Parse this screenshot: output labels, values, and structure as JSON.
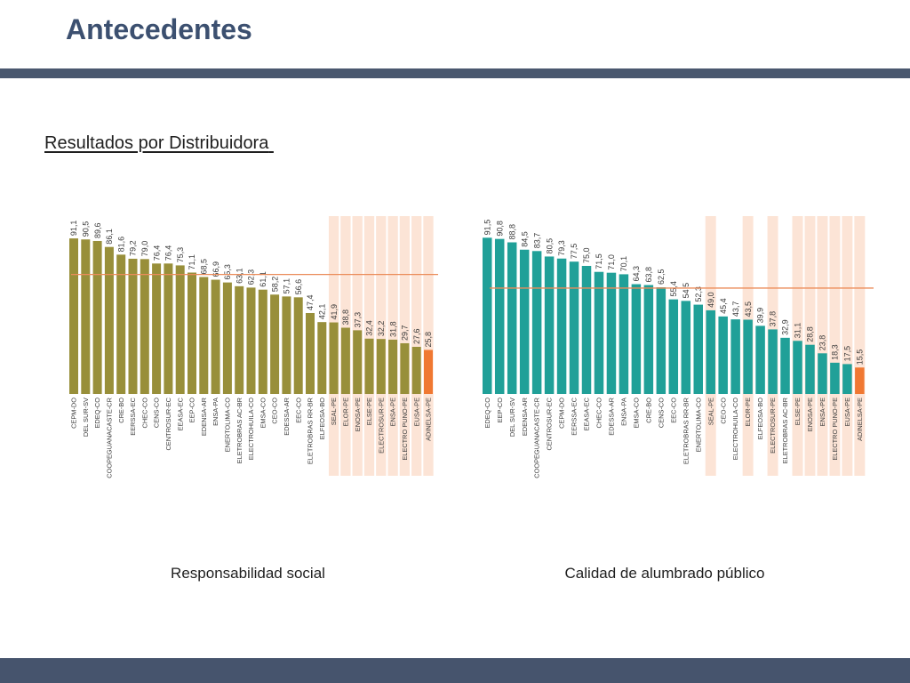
{
  "slide": {
    "title": "Antecedentes",
    "subtitle": "Resultados por Distribuidora",
    "colors": {
      "title": "#3c5070",
      "header_band": "#4a586f",
      "footer_band": "#46546d"
    }
  },
  "chart_data": [
    {
      "type": "bar",
      "title": "Responsabilidad social",
      "categories": [
        "CEPM-DO",
        "DEL SUR-SV",
        "EDEQ-CO",
        "COOPEGUANACASTE-CR",
        "CRE-BO",
        "EERSSA-EC",
        "CHEC-CO",
        "CENS-CO",
        "CENTROSUR-EC",
        "EEASA-EC",
        "EEP-CO",
        "EDENSA-AR",
        "ENSA-PA",
        "ENERTOLIMA-CO",
        "ELETROBRAS AC-BR",
        "ELECTROHUILA-CO",
        "EMSA-CO",
        "CEO-CO",
        "EDESSA-AR",
        "EEC-CO",
        "ELETROBRAS RR-BR",
        "ELFEOSA-BO",
        "SEAL-PE",
        "ELOR-PE",
        "ENOSA-PE",
        "ELSE-PE",
        "ELECTROSUR-PE",
        "ENSA-PE",
        "ELECTRO PUNO-PE",
        "EUSA-PE",
        "ADINELSA-PE"
      ],
      "values": [
        91.1,
        90.5,
        89.6,
        86.1,
        81.6,
        79.2,
        79.0,
        76.4,
        76.4,
        75.3,
        71.1,
        68.5,
        66.9,
        65.3,
        63.1,
        62.3,
        61.1,
        58.2,
        57.1,
        56.6,
        47.4,
        42.1,
        41.9,
        38.8,
        37.3,
        32.4,
        32.2,
        31.8,
        29.7,
        27.6,
        25.8
      ],
      "ylim": [
        0,
        100
      ],
      "reference_line": 70,
      "highlighted_categories": [
        "SEAL-PE",
        "ELOR-PE",
        "ENOSA-PE",
        "ELSE-PE",
        "ELECTROSUR-PE",
        "ENSA-PE",
        "ELECTRO PUNO-PE",
        "EUSA-PE",
        "ADINELSA-PE"
      ],
      "accent_category": "ADINELSA-PE",
      "colors": {
        "bar": "#988f3a",
        "accent": "#f07832",
        "highlight_band": "#fce4d6",
        "reference_line": "#eb8c5a"
      }
    },
    {
      "type": "bar",
      "title": "Calidad de alumbrado público",
      "categories": [
        "EDEQ-CO",
        "EEP-CO",
        "DEL SUR-SV",
        "EDENSA-AR",
        "COOPEGUANACASTE-CR",
        "CENTROSUR-EC",
        "CEPM-DO",
        "EERSSA-EC",
        "EEASA-EC",
        "CHEC-CO",
        "EDESSA-AR",
        "ENSA-PA",
        "EMSA-CO",
        "CRE-BO",
        "CENS-CO",
        "EEC-CO",
        "ELETROBRAS RR-BR",
        "ENERTOLIMA-CO",
        "SEAL-PE",
        "CEO-CO",
        "ELECTROHUILA-CO",
        "ELOR-PE",
        "ELFEOSA-BO",
        "ELECTROSUR-PE",
        "ELETROBRAS AC-BR",
        "ELSE-PE",
        "ENOSA-PE",
        "ENSA-PE",
        "ELECTRO PUNO-PE",
        "EUSA-PE",
        "ADINELSA-PE"
      ],
      "values": [
        91.5,
        90.8,
        88.8,
        84.5,
        83.7,
        80.5,
        79.3,
        77.5,
        75.0,
        71.5,
        71.0,
        70.1,
        64.3,
        63.8,
        62.5,
        55.4,
        54.5,
        52.3,
        49.0,
        45.4,
        43.7,
        43.5,
        39.9,
        37.8,
        32.9,
        31.1,
        28.8,
        23.8,
        18.3,
        17.5,
        15.5
      ],
      "ylim": [
        0,
        100
      ],
      "reference_line": 62,
      "highlighted_categories": [
        "SEAL-PE",
        "ELOR-PE",
        "ELECTROSUR-PE",
        "ELSE-PE",
        "ENOSA-PE",
        "ENSA-PE",
        "ELECTRO PUNO-PE",
        "EUSA-PE",
        "ADINELSA-PE"
      ],
      "accent_category": "ADINELSA-PE",
      "colors": {
        "bar": "#20a098",
        "accent": "#f07832",
        "highlight_band": "#fce4d6",
        "reference_line": "#eb8c5a"
      }
    }
  ]
}
